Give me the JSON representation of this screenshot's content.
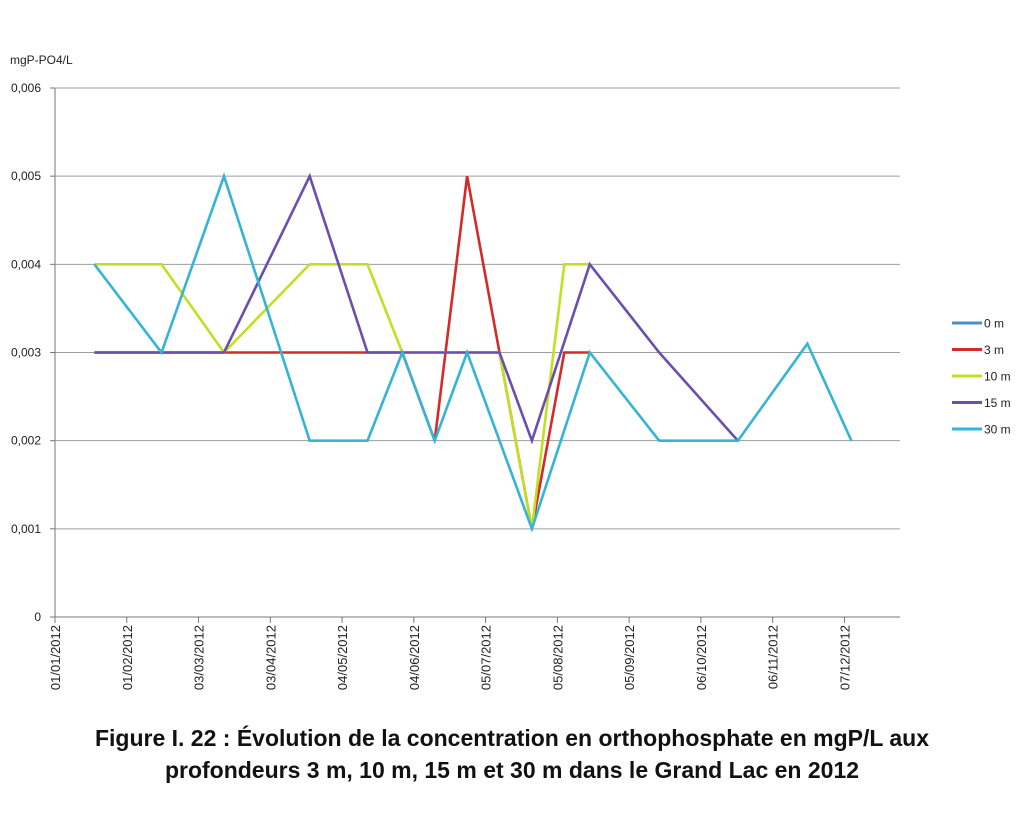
{
  "chart_data": {
    "type": "line",
    "ylabel": "mgP-PO4/L",
    "ylim": [
      0,
      0.006
    ],
    "y_ticks": [
      {
        "value": 0,
        "label": "0"
      },
      {
        "value": 0.001,
        "label": "0,001"
      },
      {
        "value": 0.002,
        "label": "0,002"
      },
      {
        "value": 0.003,
        "label": "0,003"
      },
      {
        "value": 0.004,
        "label": "0,004"
      },
      {
        "value": 0.005,
        "label": "0,005"
      },
      {
        "value": 0.006,
        "label": "0,006"
      }
    ],
    "x_ticks": [
      {
        "day": 0,
        "label": "01/01/2012"
      },
      {
        "day": 31,
        "label": "01/02/2012"
      },
      {
        "day": 62,
        "label": "03/03/2012"
      },
      {
        "day": 93,
        "label": "03/04/2012"
      },
      {
        "day": 124,
        "label": "04/05/2012"
      },
      {
        "day": 155,
        "label": "04/06/2012"
      },
      {
        "day": 186,
        "label": "05/07/2012"
      },
      {
        "day": 217,
        "label": "05/08/2012"
      },
      {
        "day": 248,
        "label": "05/09/2012"
      },
      {
        "day": 279,
        "label": "06/10/2012"
      },
      {
        "day": 310,
        "label": "06/11/2012"
      },
      {
        "day": 341,
        "label": "07/12/2012"
      }
    ],
    "xlim_days": [
      0,
      365
    ],
    "grid": true,
    "legend_position": "right",
    "series": [
      {
        "name": "0 m",
        "color": "#4a90c8",
        "points": []
      },
      {
        "name": "3 m",
        "color": "#d42a2a",
        "points": [
          [
            17,
            0.003
          ],
          [
            46,
            0.003
          ],
          [
            73,
            0.003
          ],
          [
            110,
            0.003
          ],
          [
            135,
            0.003
          ],
          [
            150,
            0.003
          ],
          [
            164,
            0.002
          ],
          [
            178,
            0.005
          ],
          [
            192,
            0.003
          ],
          [
            206,
            0.001
          ],
          [
            220,
            0.003
          ],
          [
            231,
            0.003
          ]
        ]
      },
      {
        "name": "10 m",
        "color": "#c2e022",
        "points": [
          [
            17,
            0.004
          ],
          [
            46,
            0.004
          ],
          [
            73,
            0.003
          ],
          [
            110,
            0.004
          ],
          [
            135,
            0.004
          ],
          [
            150,
            0.003
          ],
          [
            164,
            0.003
          ],
          [
            178,
            0.003
          ],
          [
            192,
            0.003
          ],
          [
            206,
            0.001
          ],
          [
            220,
            0.004
          ],
          [
            231,
            0.004
          ]
        ]
      },
      {
        "name": "15 m",
        "color": "#6a4fb0",
        "points": [
          [
            17,
            0.003
          ],
          [
            46,
            0.003
          ],
          [
            73,
            0.003
          ],
          [
            110,
            0.005
          ],
          [
            135,
            0.003
          ],
          [
            150,
            0.003
          ],
          [
            164,
            0.003
          ],
          [
            178,
            0.003
          ],
          [
            192,
            0.003
          ],
          [
            206,
            0.002
          ],
          [
            231,
            0.004
          ],
          [
            261,
            0.003
          ],
          [
            295,
            0.002
          ]
        ]
      },
      {
        "name": "30 m",
        "color": "#34b4d6",
        "points": [
          [
            17,
            0.004
          ],
          [
            46,
            0.003
          ],
          [
            73,
            0.005
          ],
          [
            110,
            0.002
          ],
          [
            135,
            0.002
          ],
          [
            150,
            0.003
          ],
          [
            164,
            0.002
          ],
          [
            178,
            0.003
          ],
          [
            206,
            0.001
          ],
          [
            231,
            0.003
          ],
          [
            261,
            0.002
          ],
          [
            295,
            0.002
          ],
          [
            325,
            0.0031
          ],
          [
            344,
            0.002
          ]
        ]
      }
    ]
  },
  "caption": {
    "line1": "Figure I. 22 : Évolution de la concentration en orthophosphate en mgP/L aux",
    "line2": "profondeurs 3 m, 10 m, 15 m et 30 m dans le Grand Lac en 2012"
  }
}
